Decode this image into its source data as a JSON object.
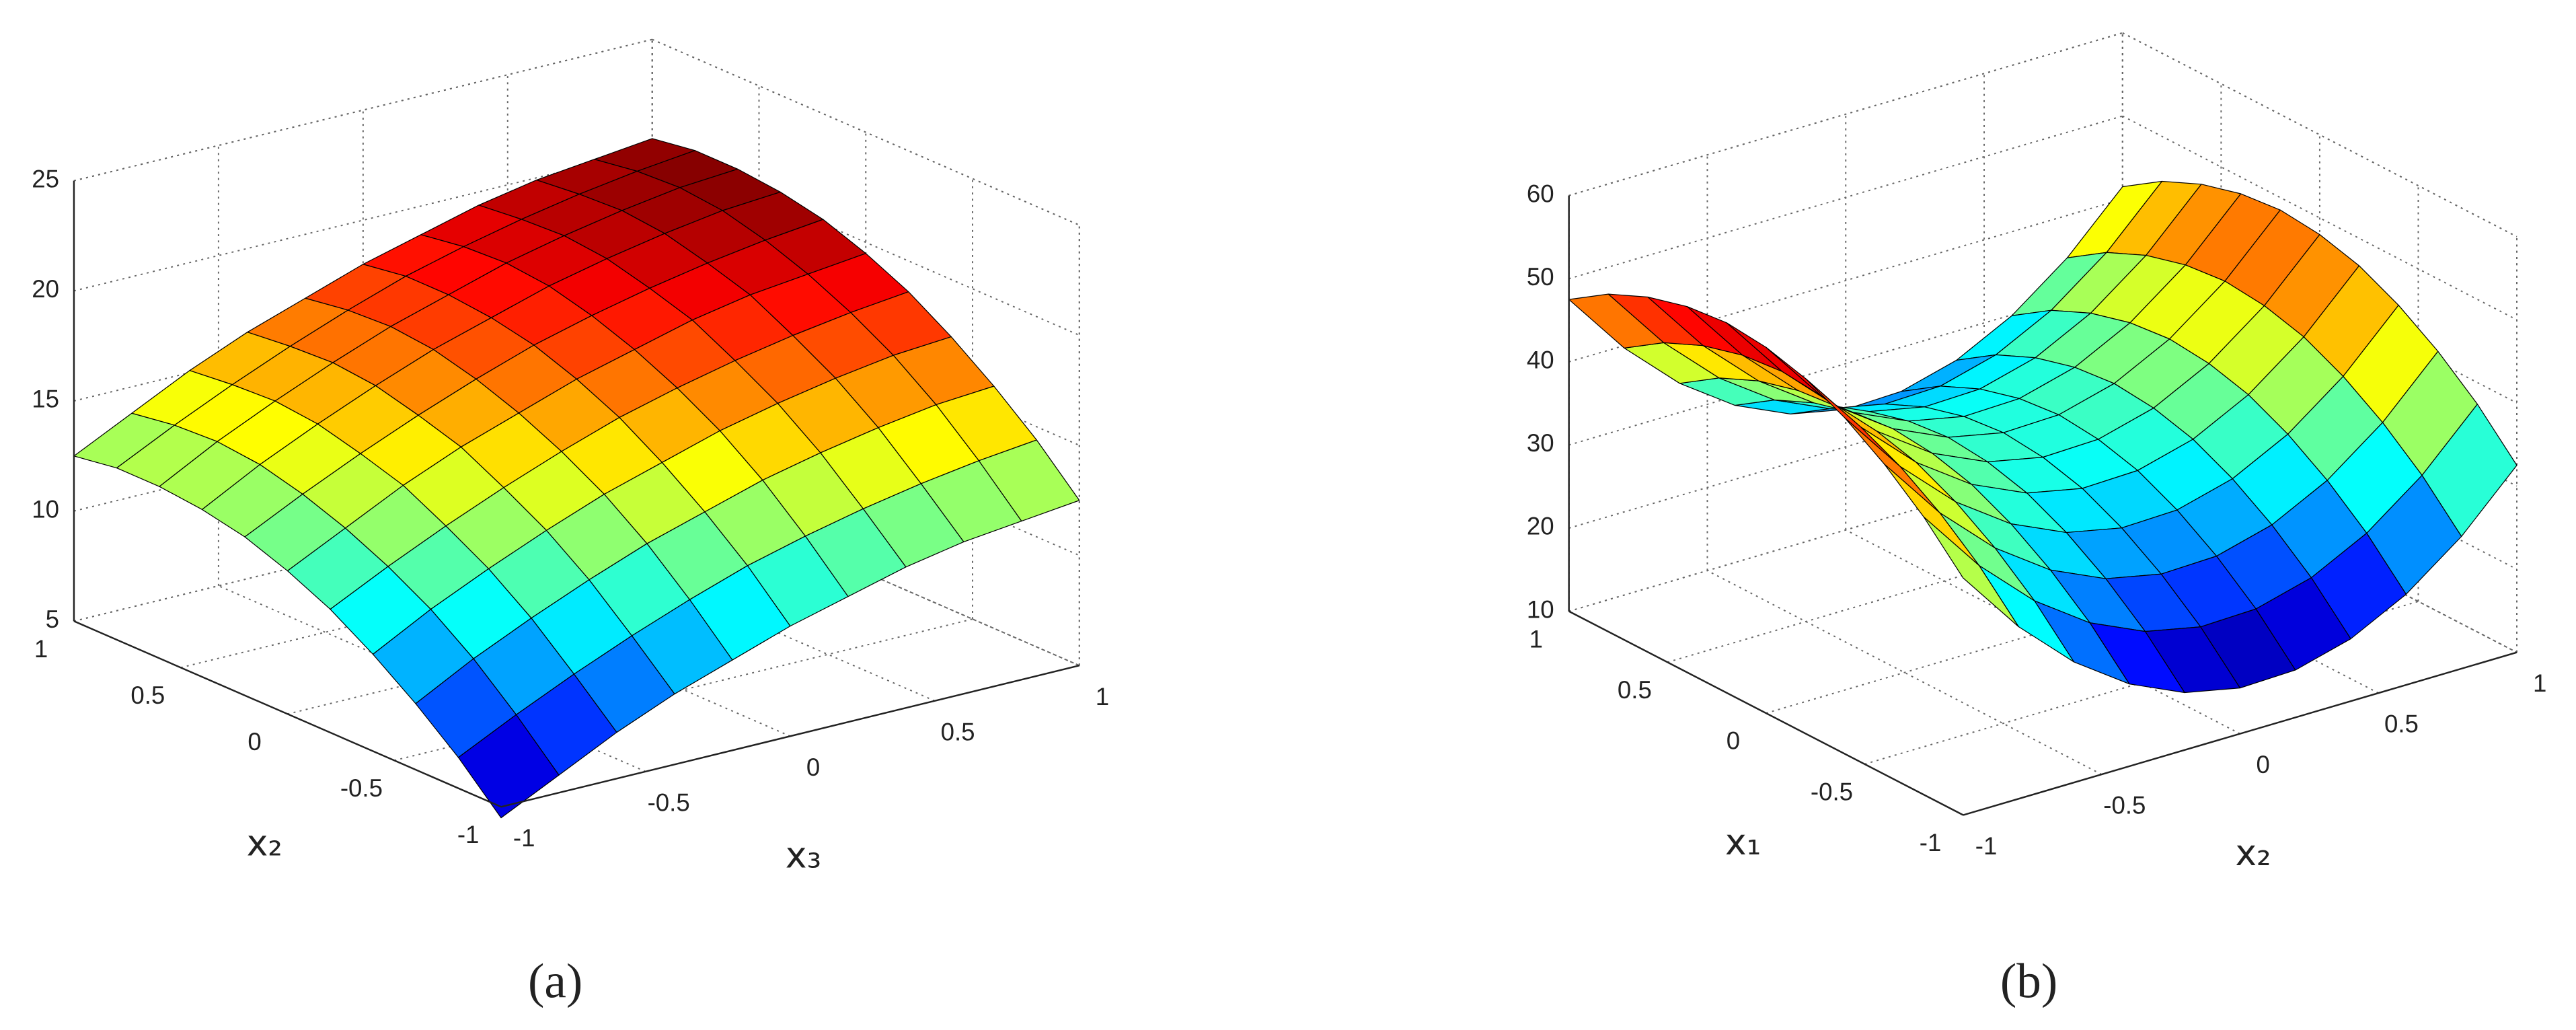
{
  "chart_data": [
    {
      "type": "surface",
      "caption": "(a)",
      "xlabel": "x₃",
      "ylabel": "x₂",
      "x": [
        -1,
        -0.8,
        -0.6,
        -0.4,
        -0.2,
        0,
        0.2,
        0.4,
        0.6,
        0.8,
        1
      ],
      "y": [
        -1,
        -0.8,
        -0.6,
        -0.4,
        -0.2,
        0,
        0.2,
        0.4,
        0.6,
        0.8,
        1
      ],
      "z": [
        [
          4.5,
          5.8,
          7.1,
          8.2,
          9.1,
          10,
          10.7,
          11.4,
          11.9,
          12.2,
          12.5
        ],
        [
          6.4,
          7.7,
          8.9,
          10,
          11,
          11.9,
          12.6,
          13.2,
          13.7,
          14.1,
          14.4
        ],
        [
          8,
          9.4,
          10.6,
          11.7,
          12.7,
          13.5,
          14.3,
          14.9,
          15.4,
          15.8,
          16
        ],
        [
          9.4,
          10.8,
          12,
          13.1,
          14.1,
          14.9,
          15.7,
          16.3,
          16.8,
          17.2,
          17.4
        ],
        [
          10.6,
          11.9,
          13.1,
          14.2,
          15.2,
          16.1,
          16.8,
          17.4,
          17.9,
          18.3,
          18.6
        ],
        [
          11.5,
          12.8,
          14.1,
          15.2,
          16.1,
          17,
          17.7,
          18.4,
          18.9,
          19.2,
          19.5
        ],
        [
          12.2,
          13.5,
          14.7,
          15.8,
          16.8,
          17.7,
          18.4,
          19,
          19.5,
          19.9,
          20.2
        ],
        [
          12.6,
          14,
          15.2,
          16.3,
          17.3,
          18.1,
          18.9,
          19.5,
          20,
          20.4,
          20.6
        ],
        [
          12.8,
          14.2,
          15.4,
          16.5,
          17.5,
          18.3,
          19.1,
          19.7,
          20.2,
          20.6,
          20.8
        ],
        [
          12.8,
          14.1,
          15.3,
          16.4,
          17.4,
          18.3,
          19,
          19.6,
          20.1,
          20.5,
          20.8
        ],
        [
          12.5,
          13.8,
          15.1,
          16.2,
          17.1,
          18,
          18.7,
          19.4,
          19.9,
          20.2,
          20.5
        ]
      ],
      "xlim": [
        -1,
        1
      ],
      "ylim": [
        -1,
        1
      ],
      "zlim": [
        5,
        25
      ],
      "xticks": [
        -1,
        -0.5,
        0,
        0.5,
        1
      ],
      "yticks": [
        -1,
        -0.5,
        0,
        0.5,
        1
      ],
      "zticks": [
        5,
        10,
        15,
        20,
        25
      ],
      "colormap": "jet",
      "edgecolor": "#000000",
      "grid": true
    },
    {
      "type": "surface",
      "caption": "(b)",
      "xlabel": "x₂",
      "ylabel": "x₁",
      "x": [
        -1,
        -0.8,
        -0.6,
        -0.4,
        -0.2,
        0,
        0.2,
        0.4,
        0.6,
        0.8,
        1
      ],
      "y": [
        -1,
        -0.8,
        -0.6,
        -0.4,
        -0.2,
        0,
        0.2,
        0.4,
        0.6,
        0.8,
        1
      ],
      "z": [
        [
          38.5,
          30.7,
          24.5,
          19.9,
          16.9,
          15.5,
          15.7,
          17.5,
          20.9,
          25.9,
          32.5
        ],
        [
          43.4,
          35.6,
          29.4,
          24.8,
          21.8,
          20.4,
          20.6,
          22.4,
          25.8,
          30.8,
          37.4
        ],
        [
          47.3,
          39.5,
          33.3,
          28.7,
          25.7,
          24.3,
          24.5,
          26.3,
          29.7,
          34.7,
          41.3
        ],
        [
          50.4,
          42.6,
          36.4,
          31.8,
          28.8,
          27.4,
          27.6,
          29.4,
          32.8,
          37.8,
          44.4
        ],
        [
          52.7,
          44.9,
          38.7,
          34.1,
          31.1,
          29.7,
          29.9,
          31.7,
          35.1,
          40.1,
          46.7
        ],
        [
          54,
          46.2,
          40,
          35.4,
          32.4,
          31,
          31.2,
          33,
          36.4,
          41.4,
          48
        ],
        [
          54.5,
          46.7,
          40.5,
          35.9,
          32.9,
          31.5,
          31.7,
          33.5,
          36.9,
          41.9,
          48.5
        ],
        [
          54,
          46.2,
          40,
          35.4,
          32.4,
          31,
          31.2,
          33,
          36.4,
          41.4,
          48
        ],
        [
          52.7,
          44.9,
          38.7,
          34.1,
          31.1,
          29.7,
          29.9,
          31.7,
          35.1,
          40.1,
          46.7
        ],
        [
          50.6,
          42.8,
          36.6,
          32,
          29,
          27.6,
          27.8,
          29.6,
          33,
          38,
          44.6
        ],
        [
          47.5,
          39.7,
          33.5,
          28.9,
          25.9,
          24.5,
          24.7,
          26.5,
          29.9,
          34.9,
          41.5
        ]
      ],
      "xlim": [
        -1,
        1
      ],
      "ylim": [
        -1,
        1
      ],
      "zlim": [
        10,
        60
      ],
      "xticks": [
        -1,
        -0.5,
        0,
        0.5,
        1
      ],
      "yticks": [
        -1,
        -0.5,
        0,
        0.5,
        1
      ],
      "zticks": [
        10,
        20,
        30,
        40,
        50,
        60
      ],
      "colormap": "jet",
      "edgecolor": "#000000",
      "grid": true
    }
  ]
}
